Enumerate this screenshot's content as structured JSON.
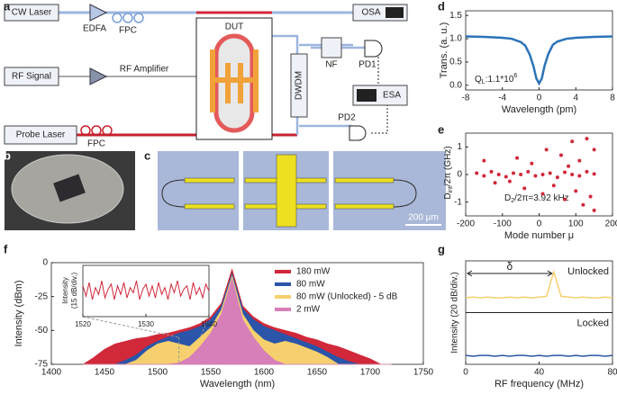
{
  "panel_labels": [
    "a",
    "b",
    "c",
    "d",
    "e",
    "f",
    "g"
  ],
  "diagram": {
    "cw_laser": "CW Laser",
    "edfa": "EDFA",
    "fpc_top": "FPC",
    "dut": "DUT",
    "osa": "OSA",
    "nf": "NF",
    "pd1": "PD1",
    "rf_signal": "RF Signal",
    "rf_amplifier": "RF Amplifier",
    "esa": "ESA",
    "dwdm": "DWDM",
    "pd2": "PD2",
    "probe_laser": "Probe Laser",
    "fpc_bottom": "FPC"
  },
  "micrograph": {
    "scale_bar": "200 μm"
  },
  "chart_data": [
    {
      "type": "line",
      "xlabel": "Wavelength (pm)",
      "ylabel": "Trans. (a. u.)",
      "annotation": [
        "Q",
        "L",
        ":1.1*10",
        "6"
      ],
      "x": [
        -8,
        -6,
        -4,
        -3,
        -2,
        -1.5,
        -1,
        -0.6,
        -0.3,
        0,
        0.3,
        0.6,
        1,
        1.5,
        2,
        3,
        4,
        6,
        8
      ],
      "values": [
        1.05,
        1.04,
        1.02,
        1.0,
        0.93,
        0.85,
        0.65,
        0.4,
        0.15,
        0.04,
        0.15,
        0.42,
        0.67,
        0.87,
        0.94,
        1.0,
        1.02,
        1.04,
        1.05
      ],
      "color": "#2b73b8",
      "xlim": [
        -8,
        8
      ],
      "xticks": [
        -8,
        -4,
        0,
        4,
        8
      ],
      "ylim": [
        -0.1,
        1.6
      ],
      "yticks": [
        {
          "value": 0,
          "label": "0.0"
        },
        0.5,
        {
          "value": 1,
          "label": "1.0"
        },
        1.5
      ]
    },
    {
      "type": "scatter",
      "xlabel": "Mode number μ",
      "ylabel": [
        "D",
        "int",
        "/2π (GHz)"
      ],
      "annotation": [
        "D",
        "2",
        "/2π=3.92 kHz"
      ],
      "x": [
        -170,
        -150,
        -130,
        -110,
        -90,
        -70,
        -50,
        -30,
        -10,
        10,
        30,
        50,
        70,
        90,
        110,
        130,
        150,
        -150,
        -120,
        -60,
        -40,
        -20,
        10,
        20,
        40,
        60,
        70,
        90,
        100,
        110,
        120,
        130,
        140,
        150,
        150,
        80,
        -80
      ],
      "values": [
        0.05,
        -0.05,
        0.1,
        0,
        -0.08,
        0.05,
        0,
        0.1,
        -0.05,
        0,
        0.05,
        -0.1,
        0.08,
        0,
        -0.05,
        0.1,
        0.02,
        0.5,
        -0.3,
        0.6,
        -0.5,
        0.4,
        -0.7,
        0.9,
        -0.4,
        0.7,
        -0.9,
        1.2,
        -0.6,
        0.5,
        -1.1,
        1.3,
        -0.8,
        0.9,
        -1.3,
        0.3,
        -0.25
      ],
      "color": "#d1283a",
      "xlim": [
        -200,
        200
      ],
      "xticks": [
        -200,
        -100,
        0,
        100,
        200
      ],
      "ylim": [
        -1.5,
        1.5
      ],
      "yticks": [
        -1,
        0,
        1
      ]
    },
    {
      "type": "area",
      "xlabel": "Wavelength (nm)",
      "ylabel": "Intensity (dBm)",
      "x": [
        1430,
        1440,
        1450,
        1460,
        1470,
        1480,
        1490,
        1500,
        1510,
        1520,
        1530,
        1540,
        1550,
        1560,
        1570,
        1580,
        1590,
        1600,
        1610,
        1620,
        1630,
        1640,
        1650,
        1660,
        1670,
        1680,
        1690,
        1700,
        1710,
        1720
      ],
      "series": [
        {
          "name": "180 mW",
          "color": "#d1283a",
          "values": [
            -75,
            -70,
            -64,
            -60,
            -58,
            -56,
            -55,
            -53,
            -52,
            -50,
            -48,
            -45,
            -40,
            -30,
            -5,
            -32,
            -40,
            -45,
            -48,
            -50,
            -52,
            -55,
            -57,
            -60,
            -62,
            -65,
            -68,
            -71,
            -75,
            -75
          ]
        },
        {
          "name": "80 mW",
          "color": "#2a55a8",
          "values": [
            -75,
            -75,
            -75,
            -75,
            -72,
            -68,
            -62,
            -58,
            -55,
            -52,
            -50,
            -47,
            -42,
            -32,
            -8,
            -34,
            -42,
            -47,
            -50,
            -53,
            -56,
            -59,
            -62,
            -66,
            -70,
            -73,
            -75,
            -75,
            -75,
            -75
          ]
        },
        {
          "name": "80 mW (Unlocked) - 5 dB",
          "color": "#f6d06e",
          "values": [
            -75,
            -75,
            -75,
            -75,
            -75,
            -72,
            -65,
            -60,
            -58,
            -60,
            -62,
            -55,
            -48,
            -35,
            -10,
            -38,
            -50,
            -57,
            -60,
            -58,
            -60,
            -63,
            -66,
            -70,
            -75,
            -75,
            -75,
            -75,
            -75,
            -75
          ]
        },
        {
          "name": "2 mW",
          "color": "#d67fb8",
          "values": [
            -75,
            -75,
            -75,
            -75,
            -75,
            -75,
            -75,
            -75,
            -75,
            -74,
            -70,
            -62,
            -52,
            -38,
            -12,
            -42,
            -55,
            -65,
            -72,
            -75,
            -75,
            -75,
            -75,
            -75,
            -75,
            -75,
            -75,
            -75,
            -75,
            -75
          ]
        }
      ],
      "xlim": [
        1400,
        1750
      ],
      "xticks": [
        1400,
        1450,
        1500,
        1550,
        1600,
        1650,
        1700,
        1750
      ],
      "ylim": [
        -75,
        0
      ],
      "yticks": [
        -75,
        -50,
        -25,
        0
      ],
      "legend": "upper right"
    },
    {
      "type": "line",
      "ylabel": [
        "Intensity",
        "(15 dB/div.)"
      ],
      "x": [
        1520,
        1520.5,
        1521,
        1521.5,
        1522,
        1522.5,
        1523,
        1523.5,
        1524,
        1524.5,
        1525,
        1525.5,
        1526,
        1526.5,
        1527,
        1527.5,
        1528,
        1528.5,
        1529,
        1529.5,
        1530,
        1530.5,
        1531,
        1531.5,
        1532,
        1532.5,
        1533,
        1533.5,
        1534,
        1534.5,
        1535,
        1535.5,
        1536,
        1536.5,
        1537,
        1537.5,
        1538,
        1538.5,
        1539,
        1539.5,
        1540
      ],
      "values": [
        -42,
        -48,
        -40,
        -50,
        -43,
        -47,
        -39,
        -49,
        -44,
        -41,
        -50,
        -42,
        -47,
        -40,
        -49,
        -43,
        -46,
        -39,
        -50,
        -44,
        -41,
        -48,
        -42,
        -49,
        -40,
        -47,
        -43,
        -50,
        -41,
        -46,
        -39,
        -48,
        -44,
        -42,
        -50,
        -40,
        -47,
        -43,
        -49,
        -41,
        -45
      ],
      "color": "#d1283a",
      "xlim": [
        1520,
        1540
      ],
      "xticks": [
        1520,
        1530,
        1540
      ],
      "ylim": [
        -60,
        -30
      ]
    },
    {
      "type": "stacked-panels",
      "xlabel": "RF frequency (MHz)",
      "ylabel": "Intensity (20 dB/div.)",
      "annotation": "δ",
      "x": [
        0,
        4,
        8,
        12,
        16,
        20,
        24,
        28,
        32,
        36,
        40,
        44,
        48,
        52,
        56,
        60,
        64,
        68,
        72,
        76,
        80
      ],
      "series": [
        {
          "name": "Unlocked",
          "color": "#f6d06e",
          "values": [
            20,
            21,
            20,
            21,
            20,
            20,
            21,
            20,
            21,
            20,
            21,
            22,
            55,
            22,
            21,
            20,
            21,
            20,
            20,
            21,
            20
          ]
        },
        {
          "name": "Locked",
          "color": "#2a55a8",
          "values": [
            12,
            11,
            12,
            12,
            11,
            12,
            11,
            12,
            12,
            11,
            12,
            11,
            12,
            12,
            11,
            12,
            11,
            12,
            12,
            11,
            12
          ]
        }
      ],
      "xlim": [
        0,
        80
      ],
      "xticks": [
        0,
        40,
        80
      ],
      "ylim": [
        0,
        70
      ]
    }
  ]
}
